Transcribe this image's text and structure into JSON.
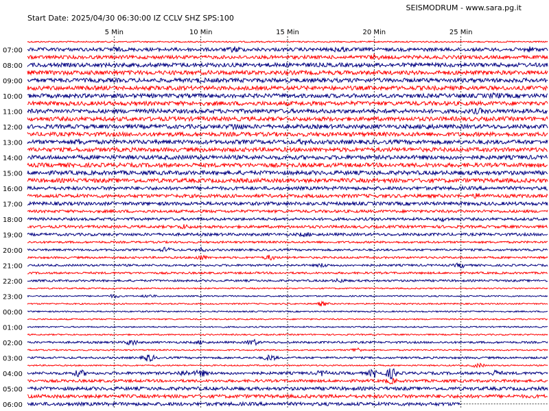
{
  "header": {
    "start_line": "Start Date: 2025/04/30 06:30:00 IZ CCLV SHZ SPS:100",
    "credit": "SEISMODRUM - www.sara.pg.it"
  },
  "colors": {
    "trace_a": "#ff0000",
    "trace_b": "#000080",
    "grid": "#000000",
    "background": "#ffffff"
  },
  "chart_data": {
    "type": "line",
    "title": "",
    "xlabel": "",
    "ylabel": "",
    "x_ticks": [
      {
        "minute": 5,
        "label": "5 Min"
      },
      {
        "minute": 10,
        "label": "10 Min"
      },
      {
        "minute": 15,
        "label": "15 Min"
      },
      {
        "minute": 20,
        "label": "20 Min"
      },
      {
        "minute": 25,
        "label": "25 Min"
      }
    ],
    "xlim_minutes": [
      0,
      30
    ],
    "gridlines": "dashed vertical at tick minutes",
    "row_labels": [
      "07:00",
      "08:00",
      "09:00",
      "10:00",
      "11:00",
      "12:00",
      "13:00",
      "14:00",
      "15:00",
      "16:00",
      "17:00",
      "18:00",
      "19:00",
      "20:00",
      "21:00",
      "22:00",
      "23:00",
      "00:00",
      "01:00",
      "02:00",
      "03:00",
      "04:00",
      "05:00",
      "06:00"
    ],
    "traces_per_hour": 2,
    "trace_color_order": [
      "red",
      "navy"
    ],
    "last_trace_end_minute": 25,
    "series": [
      {
        "hour": "06:30",
        "amp": 2,
        "events": []
      },
      {
        "hour": "07:00",
        "amp": 5,
        "events": [
          [
            5,
            2
          ],
          [
            12,
            3
          ],
          [
            18,
            3
          ],
          [
            29,
            2
          ]
        ]
      },
      {
        "hour": "07:30",
        "amp": 5,
        "events": [
          [
            20,
            2
          ]
        ]
      },
      {
        "hour": "08:00",
        "amp": 6,
        "events": []
      },
      {
        "hour": "08:30",
        "amp": 6,
        "events": []
      },
      {
        "hour": "09:00",
        "amp": 6,
        "events": [
          [
            10,
            1
          ]
        ]
      },
      {
        "hour": "09:30",
        "amp": 6,
        "events": []
      },
      {
        "hour": "10:00",
        "amp": 6,
        "events": [
          [
            27,
            2
          ]
        ]
      },
      {
        "hour": "10:30",
        "amp": 6,
        "events": []
      },
      {
        "hour": "11:00",
        "amp": 6,
        "events": [
          [
            26,
            2
          ]
        ]
      },
      {
        "hour": "11:30",
        "amp": 6,
        "events": []
      },
      {
        "hour": "12:00",
        "amp": 6,
        "events": [
          [
            12,
            3
          ],
          [
            23,
            2
          ]
        ]
      },
      {
        "hour": "12:30",
        "amp": 6,
        "events": []
      },
      {
        "hour": "13:00",
        "amp": 6,
        "events": [
          [
            3,
            2
          ],
          [
            16,
            2
          ]
        ]
      },
      {
        "hour": "13:30",
        "amp": 6,
        "events": []
      },
      {
        "hour": "14:00",
        "amp": 6,
        "events": []
      },
      {
        "hour": "14:30",
        "amp": 6,
        "events": []
      },
      {
        "hour": "15:00",
        "amp": 6,
        "events": []
      },
      {
        "hour": "15:30",
        "amp": 6,
        "events": []
      },
      {
        "hour": "16:00",
        "amp": 5,
        "events": []
      },
      {
        "hour": "16:30",
        "amp": 5,
        "events": [
          [
            26,
            2
          ]
        ]
      },
      {
        "hour": "17:00",
        "amp": 5,
        "events": []
      },
      {
        "hour": "17:30",
        "amp": 4,
        "events": []
      },
      {
        "hour": "18:00",
        "amp": 4,
        "events": [
          [
            24,
            2
          ]
        ]
      },
      {
        "hour": "18:30",
        "amp": 4,
        "events": [
          [
            9,
            2
          ]
        ]
      },
      {
        "hour": "19:00",
        "amp": 4,
        "events": [
          [
            16,
            2
          ]
        ]
      },
      {
        "hour": "19:30",
        "amp": 3,
        "events": []
      },
      {
        "hour": "20:00",
        "amp": 3,
        "events": [
          [
            8,
            3
          ],
          [
            10,
            2
          ]
        ]
      },
      {
        "hour": "20:30",
        "amp": 3,
        "events": [
          [
            10,
            3
          ],
          [
            14,
            3
          ]
        ]
      },
      {
        "hour": "21:00",
        "amp": 3,
        "events": [
          [
            25,
            3
          ],
          [
            17,
            2
          ]
        ]
      },
      {
        "hour": "21:30",
        "amp": 3,
        "events": []
      },
      {
        "hour": "22:00",
        "amp": 3,
        "events": [
          [
            18,
            2
          ]
        ]
      },
      {
        "hour": "22:30",
        "amp": 2,
        "events": []
      },
      {
        "hour": "23:00",
        "amp": 2,
        "events": [
          [
            5,
            2
          ],
          [
            7,
            2
          ]
        ]
      },
      {
        "hour": "23:30",
        "amp": 2,
        "events": [
          [
            17,
            3
          ]
        ]
      },
      {
        "hour": "00:00",
        "amp": 2,
        "events": []
      },
      {
        "hour": "00:30",
        "amp": 2,
        "events": []
      },
      {
        "hour": "01:00",
        "amp": 2,
        "events": []
      },
      {
        "hour": "01:30",
        "amp": 2,
        "events": []
      },
      {
        "hour": "02:00",
        "amp": 3,
        "events": [
          [
            6,
            4
          ],
          [
            13,
            4
          ],
          [
            10,
            2
          ]
        ]
      },
      {
        "hour": "02:30",
        "amp": 2,
        "events": [
          [
            19,
            3
          ]
        ]
      },
      {
        "hour": "03:00",
        "amp": 3,
        "events": [
          [
            7,
            5
          ],
          [
            14,
            4
          ]
        ]
      },
      {
        "hour": "03:30",
        "amp": 2,
        "events": [
          [
            26,
            3
          ]
        ]
      },
      {
        "hour": "04:00",
        "amp": 4,
        "events": [
          [
            3,
            4
          ],
          [
            9,
            3
          ],
          [
            10,
            4
          ],
          [
            17,
            3
          ],
          [
            20,
            5
          ],
          [
            21,
            7
          ],
          [
            27,
            3
          ]
        ]
      },
      {
        "hour": "04:30",
        "amp": 4,
        "events": [
          [
            21,
            3
          ]
        ]
      },
      {
        "hour": "05:00",
        "amp": 5,
        "events": []
      },
      {
        "hour": "05:30",
        "amp": 5,
        "events": []
      },
      {
        "hour": "06:00",
        "amp": 5,
        "events": []
      }
    ]
  }
}
